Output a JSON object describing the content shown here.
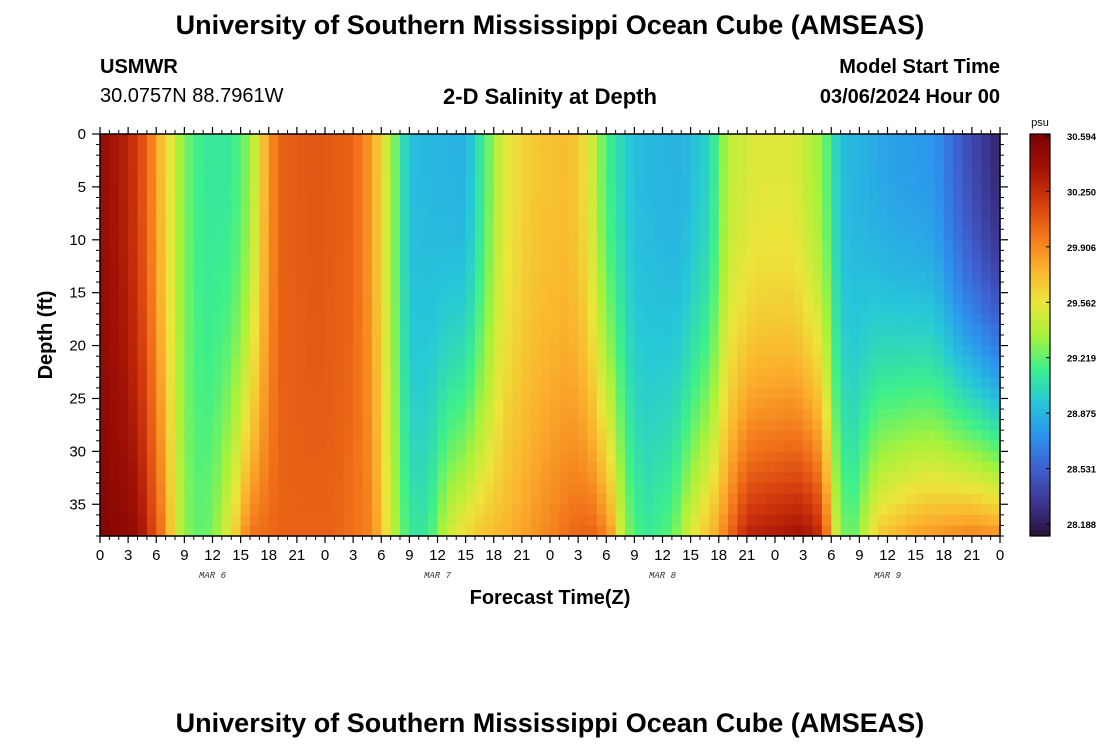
{
  "header": {
    "title": "University of Southern Mississippi Ocean Cube (AMSEAS)",
    "station": "USMWR",
    "coords": "30.0757N  88.7961W",
    "product": "2-D Salinity at Depth",
    "model_start_label": "Model Start Time",
    "model_start_value": "03/06/2024 Hour 00"
  },
  "footer": {
    "title": "University of Southern Mississippi Ocean Cube (AMSEAS)"
  },
  "chart_data": {
    "type": "heatmap",
    "title": "2-D Salinity at Depth",
    "xlabel": "Forecast Time(Z)",
    "ylabel": "Depth (ft)",
    "x_hours": [
      0,
      96
    ],
    "ylim": [
      0,
      38
    ],
    "y_ticks": [
      0,
      5,
      10,
      15,
      20,
      25,
      30,
      35
    ],
    "x_tick_labels": [
      "0",
      "3",
      "6",
      "9",
      "12",
      "15",
      "18",
      "21",
      "0",
      "3",
      "6",
      "9",
      "12",
      "15",
      "18",
      "21",
      "0",
      "3",
      "6",
      "9",
      "12",
      "15",
      "18",
      "21",
      "0",
      "3",
      "6",
      "9",
      "12",
      "15",
      "18",
      "21",
      "0"
    ],
    "day_labels": [
      {
        "text": "MAR 6",
        "hour": 12
      },
      {
        "text": "MAR 7",
        "hour": 36
      },
      {
        "text": "MAR 8",
        "hour": 60
      },
      {
        "text": "MAR 9",
        "hour": 84
      }
    ],
    "colorbar": {
      "unit": "psu",
      "min": 28.188,
      "max": 30.594,
      "labels": [
        "30.594",
        "30.250",
        "29.906",
        "29.562",
        "29.219",
        "28.875",
        "28.531",
        "28.188"
      ],
      "colors": [
        "#2a0f3a",
        "#3d3590",
        "#3f5fd0",
        "#2c93ee",
        "#27c8d8",
        "#3ef08a",
        "#a8f23a",
        "#ece53a",
        "#fbb12d",
        "#f2741a",
        "#d33a0d",
        "#a11005",
        "#7a0302"
      ]
    },
    "salinity_surface": [
      {
        "hour": 0,
        "value": 30.45
      },
      {
        "hour": 3,
        "value": 30.3
      },
      {
        "hour": 5,
        "value": 30.05
      },
      {
        "hour": 7,
        "value": 29.65
      },
      {
        "hour": 9,
        "value": 29.3
      },
      {
        "hour": 11,
        "value": 29.15
      },
      {
        "hour": 14,
        "value": 29.15
      },
      {
        "hour": 16,
        "value": 29.35
      },
      {
        "hour": 17.5,
        "value": 29.75
      },
      {
        "hour": 19,
        "value": 30.05
      },
      {
        "hour": 23,
        "value": 30.1
      },
      {
        "hour": 27,
        "value": 30.05
      },
      {
        "hour": 29,
        "value": 29.85
      },
      {
        "hour": 31,
        "value": 29.4
      },
      {
        "hour": 33,
        "value": 28.95
      },
      {
        "hour": 39,
        "value": 28.9
      },
      {
        "hour": 41,
        "value": 29.2
      },
      {
        "hour": 43,
        "value": 29.55
      },
      {
        "hour": 46,
        "value": 29.7
      },
      {
        "hour": 50,
        "value": 29.75
      },
      {
        "hour": 52,
        "value": 29.6
      },
      {
        "hour": 54,
        "value": 29.2
      },
      {
        "hour": 57,
        "value": 28.95
      },
      {
        "hour": 62,
        "value": 28.9
      },
      {
        "hour": 65,
        "value": 29.05
      },
      {
        "hour": 67,
        "value": 29.45
      },
      {
        "hour": 70,
        "value": 29.55
      },
      {
        "hour": 74,
        "value": 29.55
      },
      {
        "hour": 77,
        "value": 29.35
      },
      {
        "hour": 79,
        "value": 28.95
      },
      {
        "hour": 84,
        "value": 28.85
      },
      {
        "hour": 89,
        "value": 28.8
      },
      {
        "hour": 92,
        "value": 28.55
      },
      {
        "hour": 96,
        "value": 28.3
      }
    ],
    "salinity_bottom": [
      {
        "hour": 0,
        "value": 30.55
      },
      {
        "hour": 4,
        "value": 30.45
      },
      {
        "hour": 6.5,
        "value": 30.0
      },
      {
        "hour": 8.5,
        "value": 29.45
      },
      {
        "hour": 10,
        "value": 29.25
      },
      {
        "hour": 12,
        "value": 29.3
      },
      {
        "hour": 14,
        "value": 29.6
      },
      {
        "hour": 16,
        "value": 30.0
      },
      {
        "hour": 19,
        "value": 30.05
      },
      {
        "hour": 25,
        "value": 30.05
      },
      {
        "hour": 29,
        "value": 29.95
      },
      {
        "hour": 31,
        "value": 29.5
      },
      {
        "hour": 33,
        "value": 29.15
      },
      {
        "hour": 35,
        "value": 29.15
      },
      {
        "hour": 37,
        "value": 29.5
      },
      {
        "hour": 40,
        "value": 29.7
      },
      {
        "hour": 44,
        "value": 29.8
      },
      {
        "hour": 51,
        "value": 30.05
      },
      {
        "hour": 53,
        "value": 30.05
      },
      {
        "hour": 54.5,
        "value": 29.85
      },
      {
        "hour": 56,
        "value": 29.35
      },
      {
        "hour": 58,
        "value": 29.15
      },
      {
        "hour": 61,
        "value": 29.25
      },
      {
        "hour": 63,
        "value": 29.55
      },
      {
        "hour": 66,
        "value": 29.85
      },
      {
        "hour": 69,
        "value": 30.3
      },
      {
        "hour": 75,
        "value": 30.4
      },
      {
        "hour": 77,
        "value": 30.25
      },
      {
        "hour": 78.5,
        "value": 29.5
      },
      {
        "hour": 80,
        "value": 29.2
      },
      {
        "hour": 83,
        "value": 29.7
      },
      {
        "hour": 87,
        "value": 29.85
      },
      {
        "hour": 93,
        "value": 29.95
      },
      {
        "hour": 96,
        "value": 29.9
      }
    ]
  }
}
